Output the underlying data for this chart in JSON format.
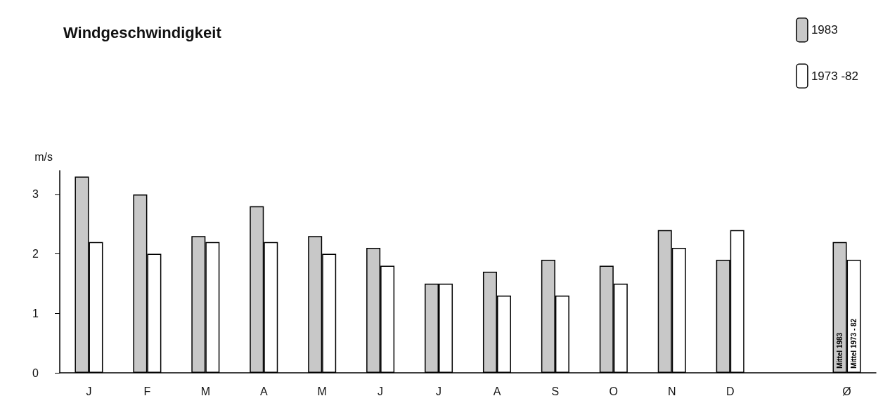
{
  "chart_data": {
    "type": "bar",
    "title": "Windgeschwindigkeit",
    "ylabel": "m/s",
    "categories": [
      "J",
      "F",
      "M",
      "A",
      "M",
      "J",
      "J",
      "A",
      "S",
      "O",
      "N",
      "D",
      null,
      "Ø"
    ],
    "series": [
      {
        "name": "1983",
        "color": "#c8c8c8",
        "values": [
          3.3,
          3.0,
          2.3,
          2.8,
          2.3,
          2.1,
          1.5,
          1.7,
          1.9,
          1.8,
          2.4,
          1.9,
          null,
          2.2
        ]
      },
      {
        "name": "1973 -82",
        "color": "#ffffff",
        "values": [
          2.2,
          2.0,
          2.2,
          2.2,
          2.0,
          1.8,
          1.5,
          1.3,
          1.3,
          1.5,
          2.1,
          2.4,
          null,
          1.9
        ]
      }
    ],
    "annotations": [
      "Mittel 1983",
      "Mittel 1973 - 82"
    ],
    "ylim": [
      0,
      3.4
    ],
    "yticks": [
      0,
      1,
      2,
      3
    ],
    "grid": false,
    "legend": "top right"
  }
}
